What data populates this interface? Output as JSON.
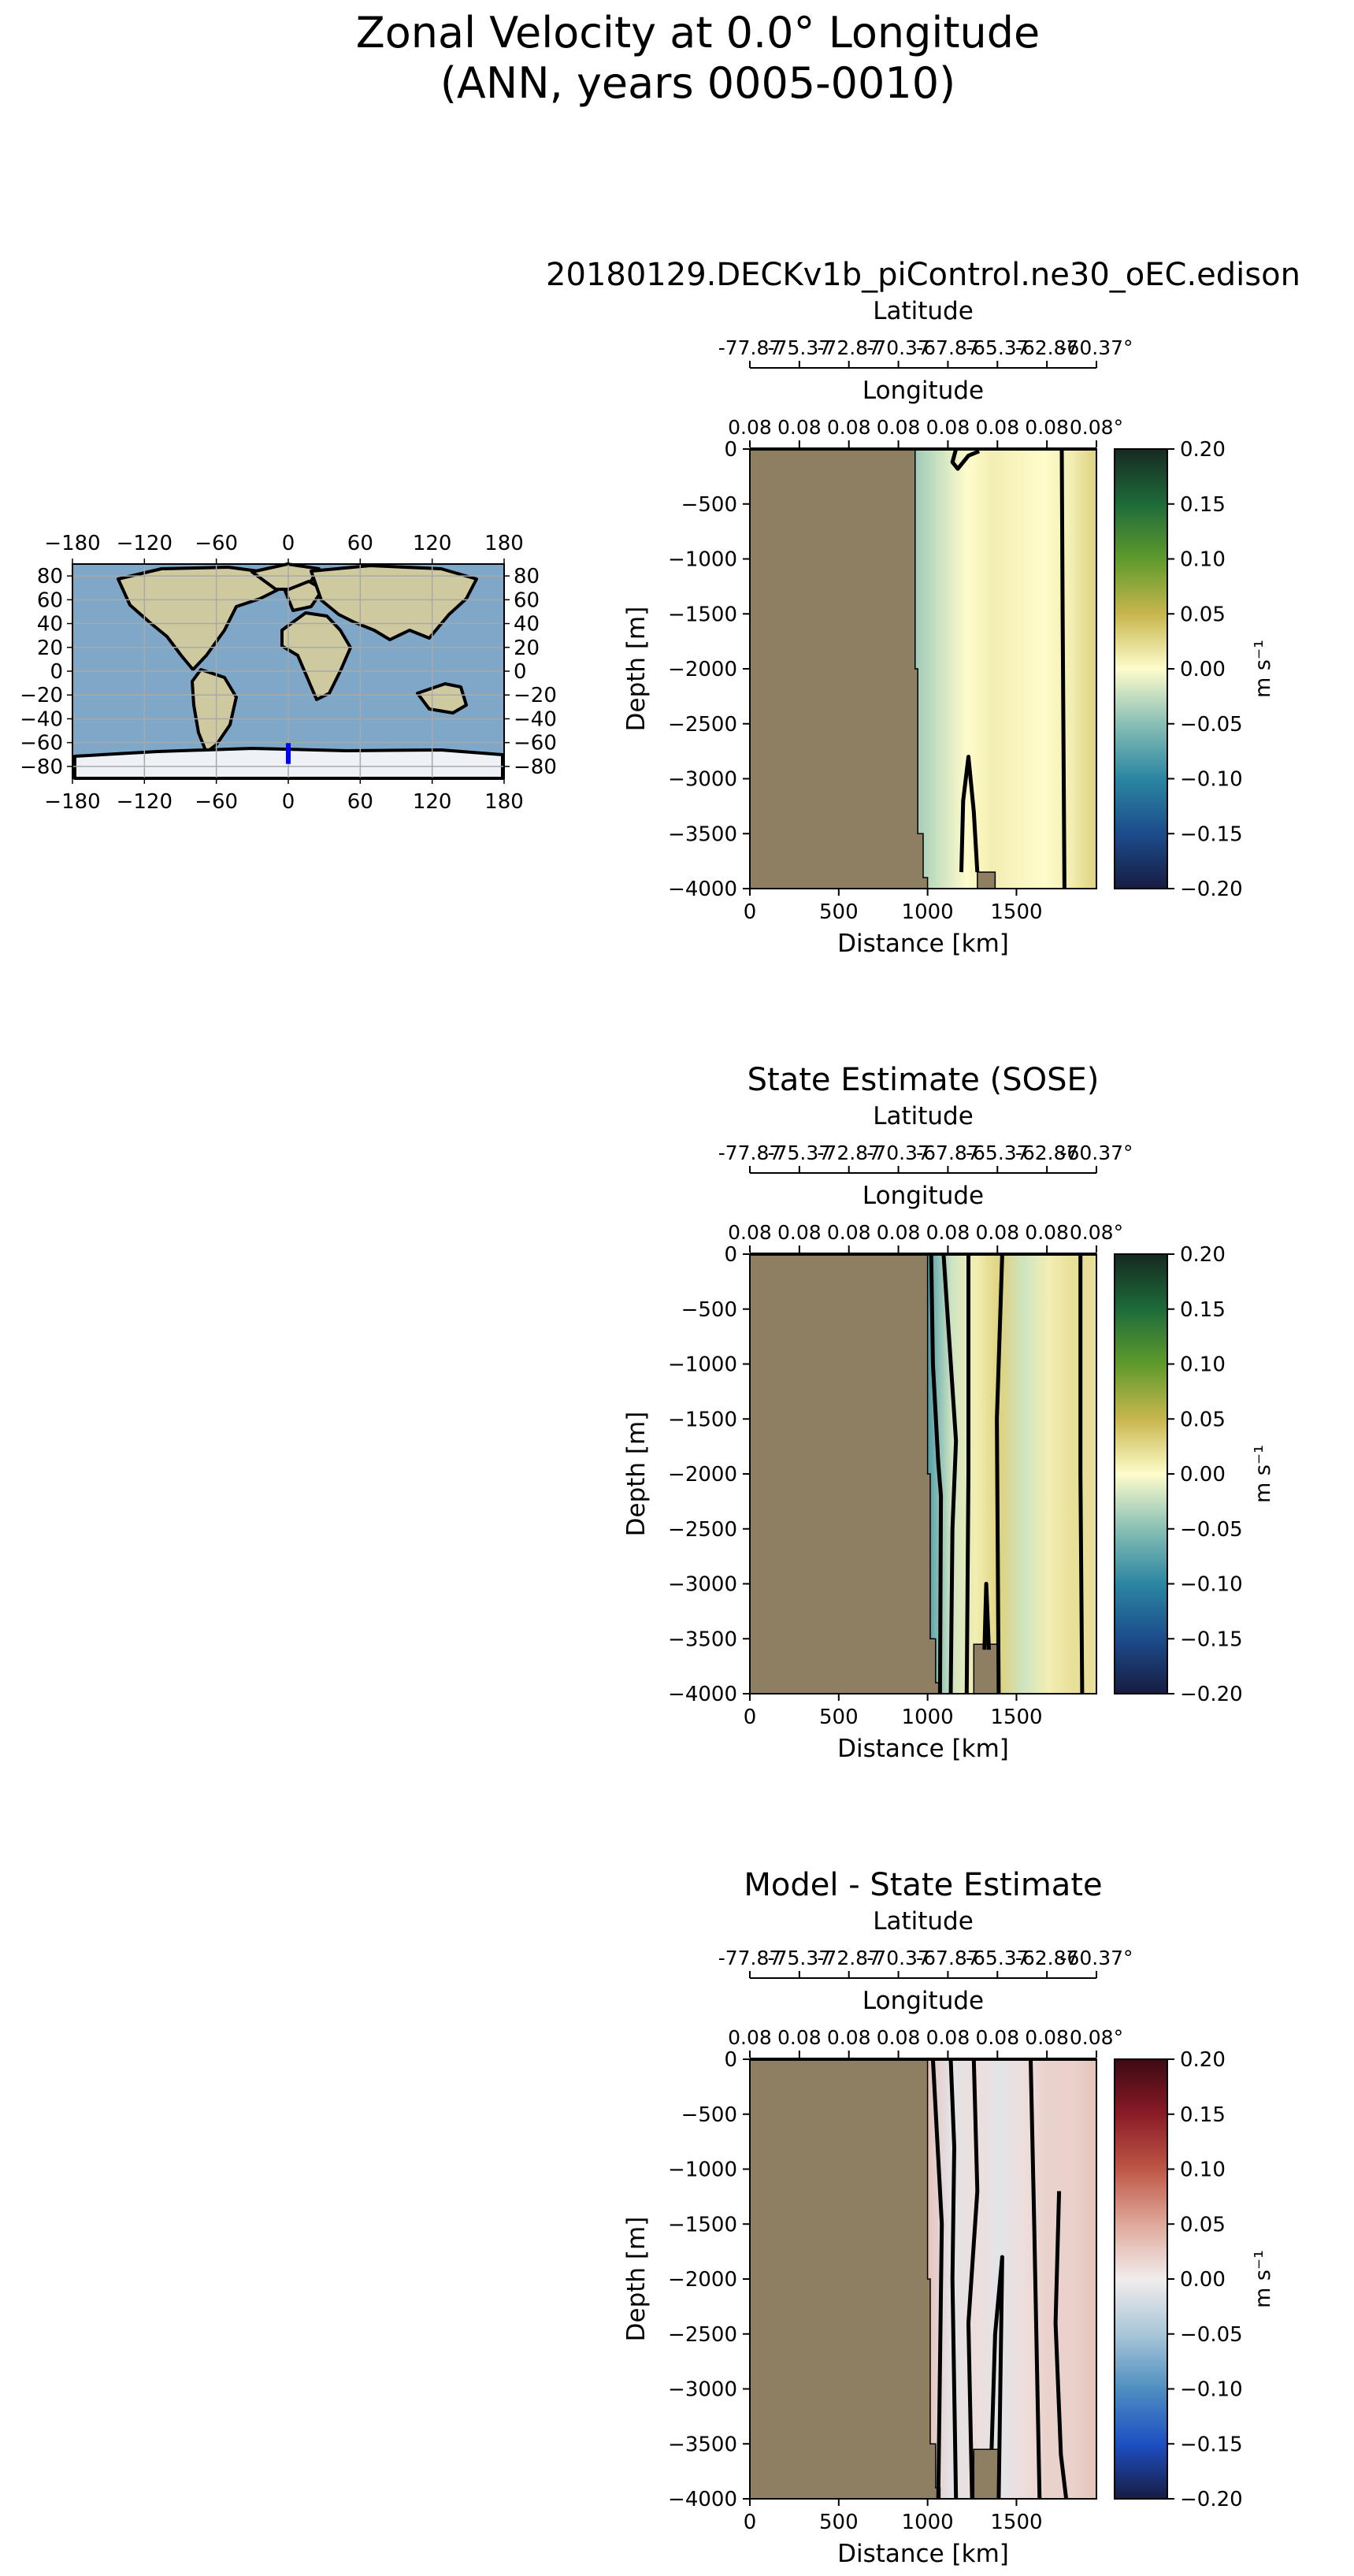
{
  "figure": {
    "title_line1": "Zonal Velocity at 0.0° Longitude",
    "title_line2": "(ANN, years 0005-0010)"
  },
  "map": {
    "lon_ticks": [
      "−180",
      "−120",
      "−60",
      "0",
      "60",
      "120",
      "180"
    ],
    "lat_ticks": [
      "80",
      "60",
      "40",
      "20",
      "0",
      "−20",
      "−40",
      "−60",
      "−80"
    ],
    "colors": {
      "ocean": "#7ea7c8",
      "land": "#cfc9a0",
      "ice": "#eef2f6",
      "transect": "#0000ff"
    },
    "transect_label": "0.0° Longitude transect"
  },
  "chart_data": [
    {
      "type": "heatmap",
      "title": "20180129.DECKv1b_piControl.ne30_oEC.edison",
      "xlabel": "Distance [km]",
      "ylabel": "Depth [m]",
      "xlim": [
        0,
        1950
      ],
      "ylim": [
        -4000,
        0
      ],
      "x_ticks": [
        "0",
        "500",
        "1000",
        "1500"
      ],
      "y_ticks": [
        "0",
        "−500",
        "−1000",
        "−1500",
        "−2000",
        "−2500",
        "−3000",
        "−3500",
        "−4000"
      ],
      "secondary_axes": [
        {
          "label": "Latitude",
          "ticks": [
            "-77.87",
            "-75.37",
            "-72.87",
            "-70.37",
            "-67.87",
            "-65.37",
            "-62.87",
            "-60.37°"
          ]
        },
        {
          "label": "Longitude",
          "ticks": [
            "0.08",
            "0.08",
            "0.08",
            "0.08",
            "0.08",
            "0.08",
            "0.08",
            "0.08°"
          ]
        }
      ],
      "colorbar": {
        "label": "m s⁻¹",
        "range": [
          -0.2,
          0.2
        ],
        "ticks": [
          "0.20",
          "0.15",
          "0.10",
          "0.05",
          "0.00",
          "−0.05",
          "−0.10",
          "−0.15",
          "−0.20"
        ],
        "colormap": "delta"
      },
      "land_boundary_km": 930,
      "seamount": {
        "x_start_km": 1280,
        "x_end_km": 1380,
        "top_depth_m": -3850
      },
      "contour_level": 0.0,
      "values_m_s": [
        -0.04,
        -0.02,
        0.0,
        0.01,
        0.005,
        0.0,
        0.01,
        0.03
      ]
    },
    {
      "type": "heatmap",
      "title": "State Estimate (SOSE)",
      "xlabel": "Distance [km]",
      "ylabel": "Depth [m]",
      "xlim": [
        0,
        1950
      ],
      "ylim": [
        -4000,
        0
      ],
      "x_ticks": [
        "0",
        "500",
        "1000",
        "1500"
      ],
      "y_ticks": [
        "0",
        "−500",
        "−1000",
        "−1500",
        "−2000",
        "−2500",
        "−3000",
        "−3500",
        "−4000"
      ],
      "secondary_axes": [
        {
          "label": "Latitude",
          "ticks": [
            "-77.87",
            "-75.37",
            "-72.87",
            "-70.37",
            "-67.87",
            "-65.37",
            "-62.87",
            "-60.37°"
          ]
        },
        {
          "label": "Longitude",
          "ticks": [
            "0.08",
            "0.08",
            "0.08",
            "0.08",
            "0.08",
            "0.08",
            "0.08",
            "0.08°"
          ]
        }
      ],
      "colorbar": {
        "label": "m s⁻¹",
        "range": [
          -0.2,
          0.2
        ],
        "ticks": [
          "0.20",
          "0.15",
          "0.10",
          "0.05",
          "0.00",
          "−0.05",
          "−0.10",
          "−0.15",
          "−0.20"
        ],
        "colormap": "delta"
      },
      "land_boundary_km": 1000,
      "seamount": {
        "x_start_km": 1260,
        "x_end_km": 1400,
        "top_depth_m": -3550
      },
      "contour_level": 0.0,
      "values_m_s": [
        -0.08,
        -0.02,
        0.01,
        0.03,
        -0.02,
        0.01,
        0.02,
        0.02
      ]
    },
    {
      "type": "heatmap",
      "title": "Model - State Estimate",
      "xlabel": "Distance [km]",
      "ylabel": "Depth [m]",
      "xlim": [
        0,
        1950
      ],
      "ylim": [
        -4000,
        0
      ],
      "x_ticks": [
        "0",
        "500",
        "1000",
        "1500"
      ],
      "y_ticks": [
        "0",
        "−500",
        "−1000",
        "−1500",
        "−2000",
        "−2500",
        "−3000",
        "−3500",
        "−4000"
      ],
      "secondary_axes": [
        {
          "label": "Latitude",
          "ticks": [
            "-77.87",
            "-75.37",
            "-72.87",
            "-70.37",
            "-67.87",
            "-65.37",
            "-62.87",
            "-60.37°"
          ]
        },
        {
          "label": "Longitude",
          "ticks": [
            "0.08",
            "0.08",
            "0.08",
            "0.08",
            "0.08",
            "0.08",
            "0.08",
            "0.08°"
          ]
        }
      ],
      "colorbar": {
        "label": "m s⁻¹",
        "range": [
          -0.2,
          0.2
        ],
        "ticks": [
          "0.20",
          "0.15",
          "0.10",
          "0.05",
          "0.00",
          "−0.05",
          "−0.10",
          "−0.15",
          "−0.20"
        ],
        "colormap": "balance"
      },
      "land_boundary_km": 1000,
      "seamount": {
        "x_start_km": 1260,
        "x_end_km": 1400,
        "top_depth_m": -3550
      },
      "contour_level": 0.0,
      "values_m_s": [
        0.03,
        -0.01,
        0.01,
        -0.01,
        0.01,
        0.02,
        0.02,
        0.03
      ]
    }
  ],
  "colors": {
    "land": "#8f7f62",
    "delta_stops": [
      "#171c42",
      "#1c4c8c",
      "#2b86a2",
      "#88bfb5",
      "#fefccb",
      "#c7b64d",
      "#5f9a2c",
      "#1d6b3a",
      "#162920"
    ],
    "balance_stops": [
      "#181c43",
      "#1d4fc3",
      "#4f8ec1",
      "#a9c6d8",
      "#f1ecec",
      "#dfa89a",
      "#be5745",
      "#8a1b27",
      "#3c0912"
    ]
  }
}
